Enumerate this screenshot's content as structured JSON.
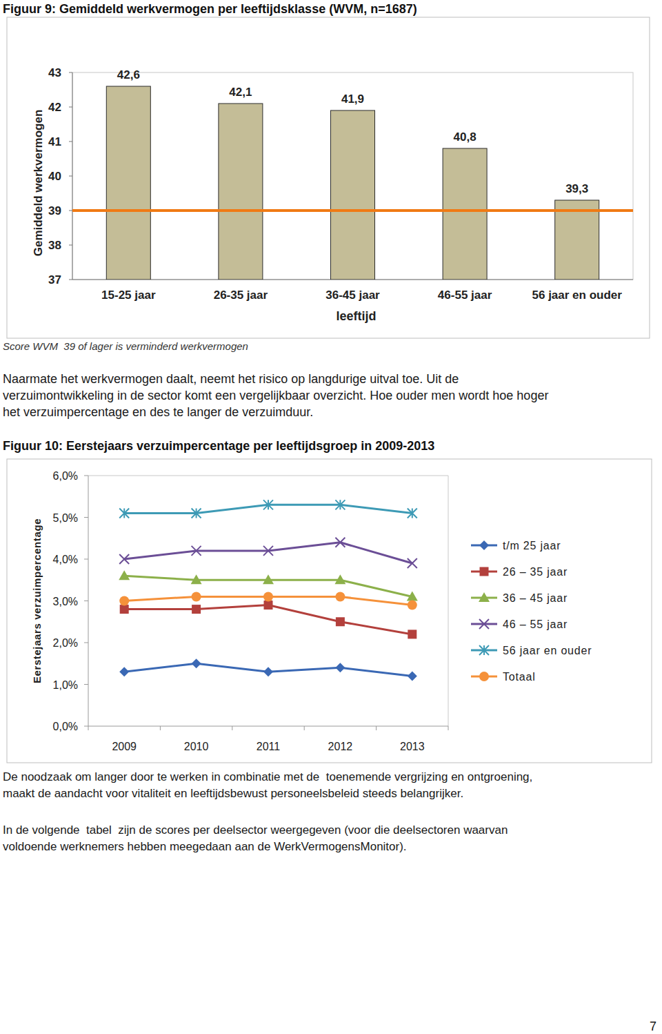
{
  "chart_data": [
    {
      "type": "bar",
      "title": "Figuur 9: Gemiddeld werkvermogen per leeftijdsklasse (WVM, n=1687)",
      "categories": [
        "15-25 jaar",
        "26-35 jaar",
        "36-45 jaar",
        "46-55 jaar",
        "56 jaar en ouder"
      ],
      "values": [
        42.6,
        42.1,
        41.9,
        40.8,
        39.3
      ],
      "value_labels": [
        "42,6",
        "42,1",
        "41,9",
        "40,8",
        "39,3"
      ],
      "data_labels": true,
      "color": "#c4bd97",
      "ylim": [
        37,
        43
      ],
      "yticks": [
        37,
        38,
        39,
        40,
        41,
        42,
        43
      ],
      "ylabel": "Gemiddeld werkvermogen",
      "xlabel": "leeftijd",
      "reference_line": {
        "value": 39,
        "color": "#f07a14"
      },
      "grid": false
    },
    {
      "type": "line",
      "title": "Figuur 10: Eerstejaars verzuimpercentage per leeftijdsgroep in 2009-2013",
      "categories": [
        "2009",
        "2010",
        "2011",
        "2012",
        "2013"
      ],
      "series": [
        {
          "name": "t/m 25 jaar",
          "color": "#3a68b4",
          "marker": "diamond",
          "values": [
            1.3,
            1.5,
            1.3,
            1.4,
            1.2
          ]
        },
        {
          "name": "26 – 35 jaar",
          "color": "#b3403c",
          "marker": "square",
          "values": [
            2.8,
            2.8,
            2.9,
            2.5,
            2.2
          ]
        },
        {
          "name": "36 – 45 jaar",
          "color": "#8cb04a",
          "marker": "triangle",
          "values": [
            3.6,
            3.5,
            3.5,
            3.5,
            3.1
          ]
        },
        {
          "name": "46 – 55 jaar",
          "color": "#6b4e96",
          "marker": "x",
          "values": [
            4.0,
            4.2,
            4.2,
            4.4,
            3.9
          ]
        },
        {
          "name": "56 jaar en ouder",
          "color": "#3d9ab5",
          "marker": "asterisk",
          "values": [
            5.1,
            5.1,
            5.3,
            5.3,
            5.1
          ]
        },
        {
          "name": "Totaal",
          "color": "#f5913a",
          "marker": "circle",
          "values": [
            3.0,
            3.1,
            3.1,
            3.1,
            2.9
          ]
        }
      ],
      "ylim": [
        0,
        6
      ],
      "yticks": [
        {
          "value": 0,
          "label": "0,0%"
        },
        {
          "value": 1,
          "label": "1,0%"
        },
        {
          "value": 2,
          "label": "2,0%"
        },
        {
          "value": 3,
          "label": "3,0%"
        },
        {
          "value": 4,
          "label": "4,0%"
        },
        {
          "value": 5,
          "label": "5,0%"
        },
        {
          "value": 6,
          "label": "6,0%"
        }
      ],
      "ylabel": "Eerstejaars verzuimpercentage",
      "legend": "right",
      "grid": false
    }
  ],
  "text": {
    "caption": "Score WVM  39 of lager is verminderd werkvermogen",
    "paragraph_1": [
      "Naarmate het werkvermogen daalt, neemt het risico op langdurige uitval toe. Uit de",
      "verzuimontwikkeling in de sector komt een vergelijkbaar overzicht. Hoe ouder men wordt hoe hoger",
      "het verzuimpercentage en des te langer de verzuimduur."
    ],
    "paragraph_2": [
      "De noodzaak om langer door te werken in combinatie met de  toenemende vergrijzing en ontgroening,",
      "maakt de aandacht voor vitaliteit en leeftijdsbewust personeelsbeleid steeds belangrijker."
    ],
    "paragraph_3": [
      "In de volgende  tabel  zijn de scores per deelsector weergegeven (voor die deelsectoren waarvan",
      "voldoende werknemers hebben meegedaan aan de WerkVermogensMonitor)."
    ],
    "page_number": "7"
  }
}
